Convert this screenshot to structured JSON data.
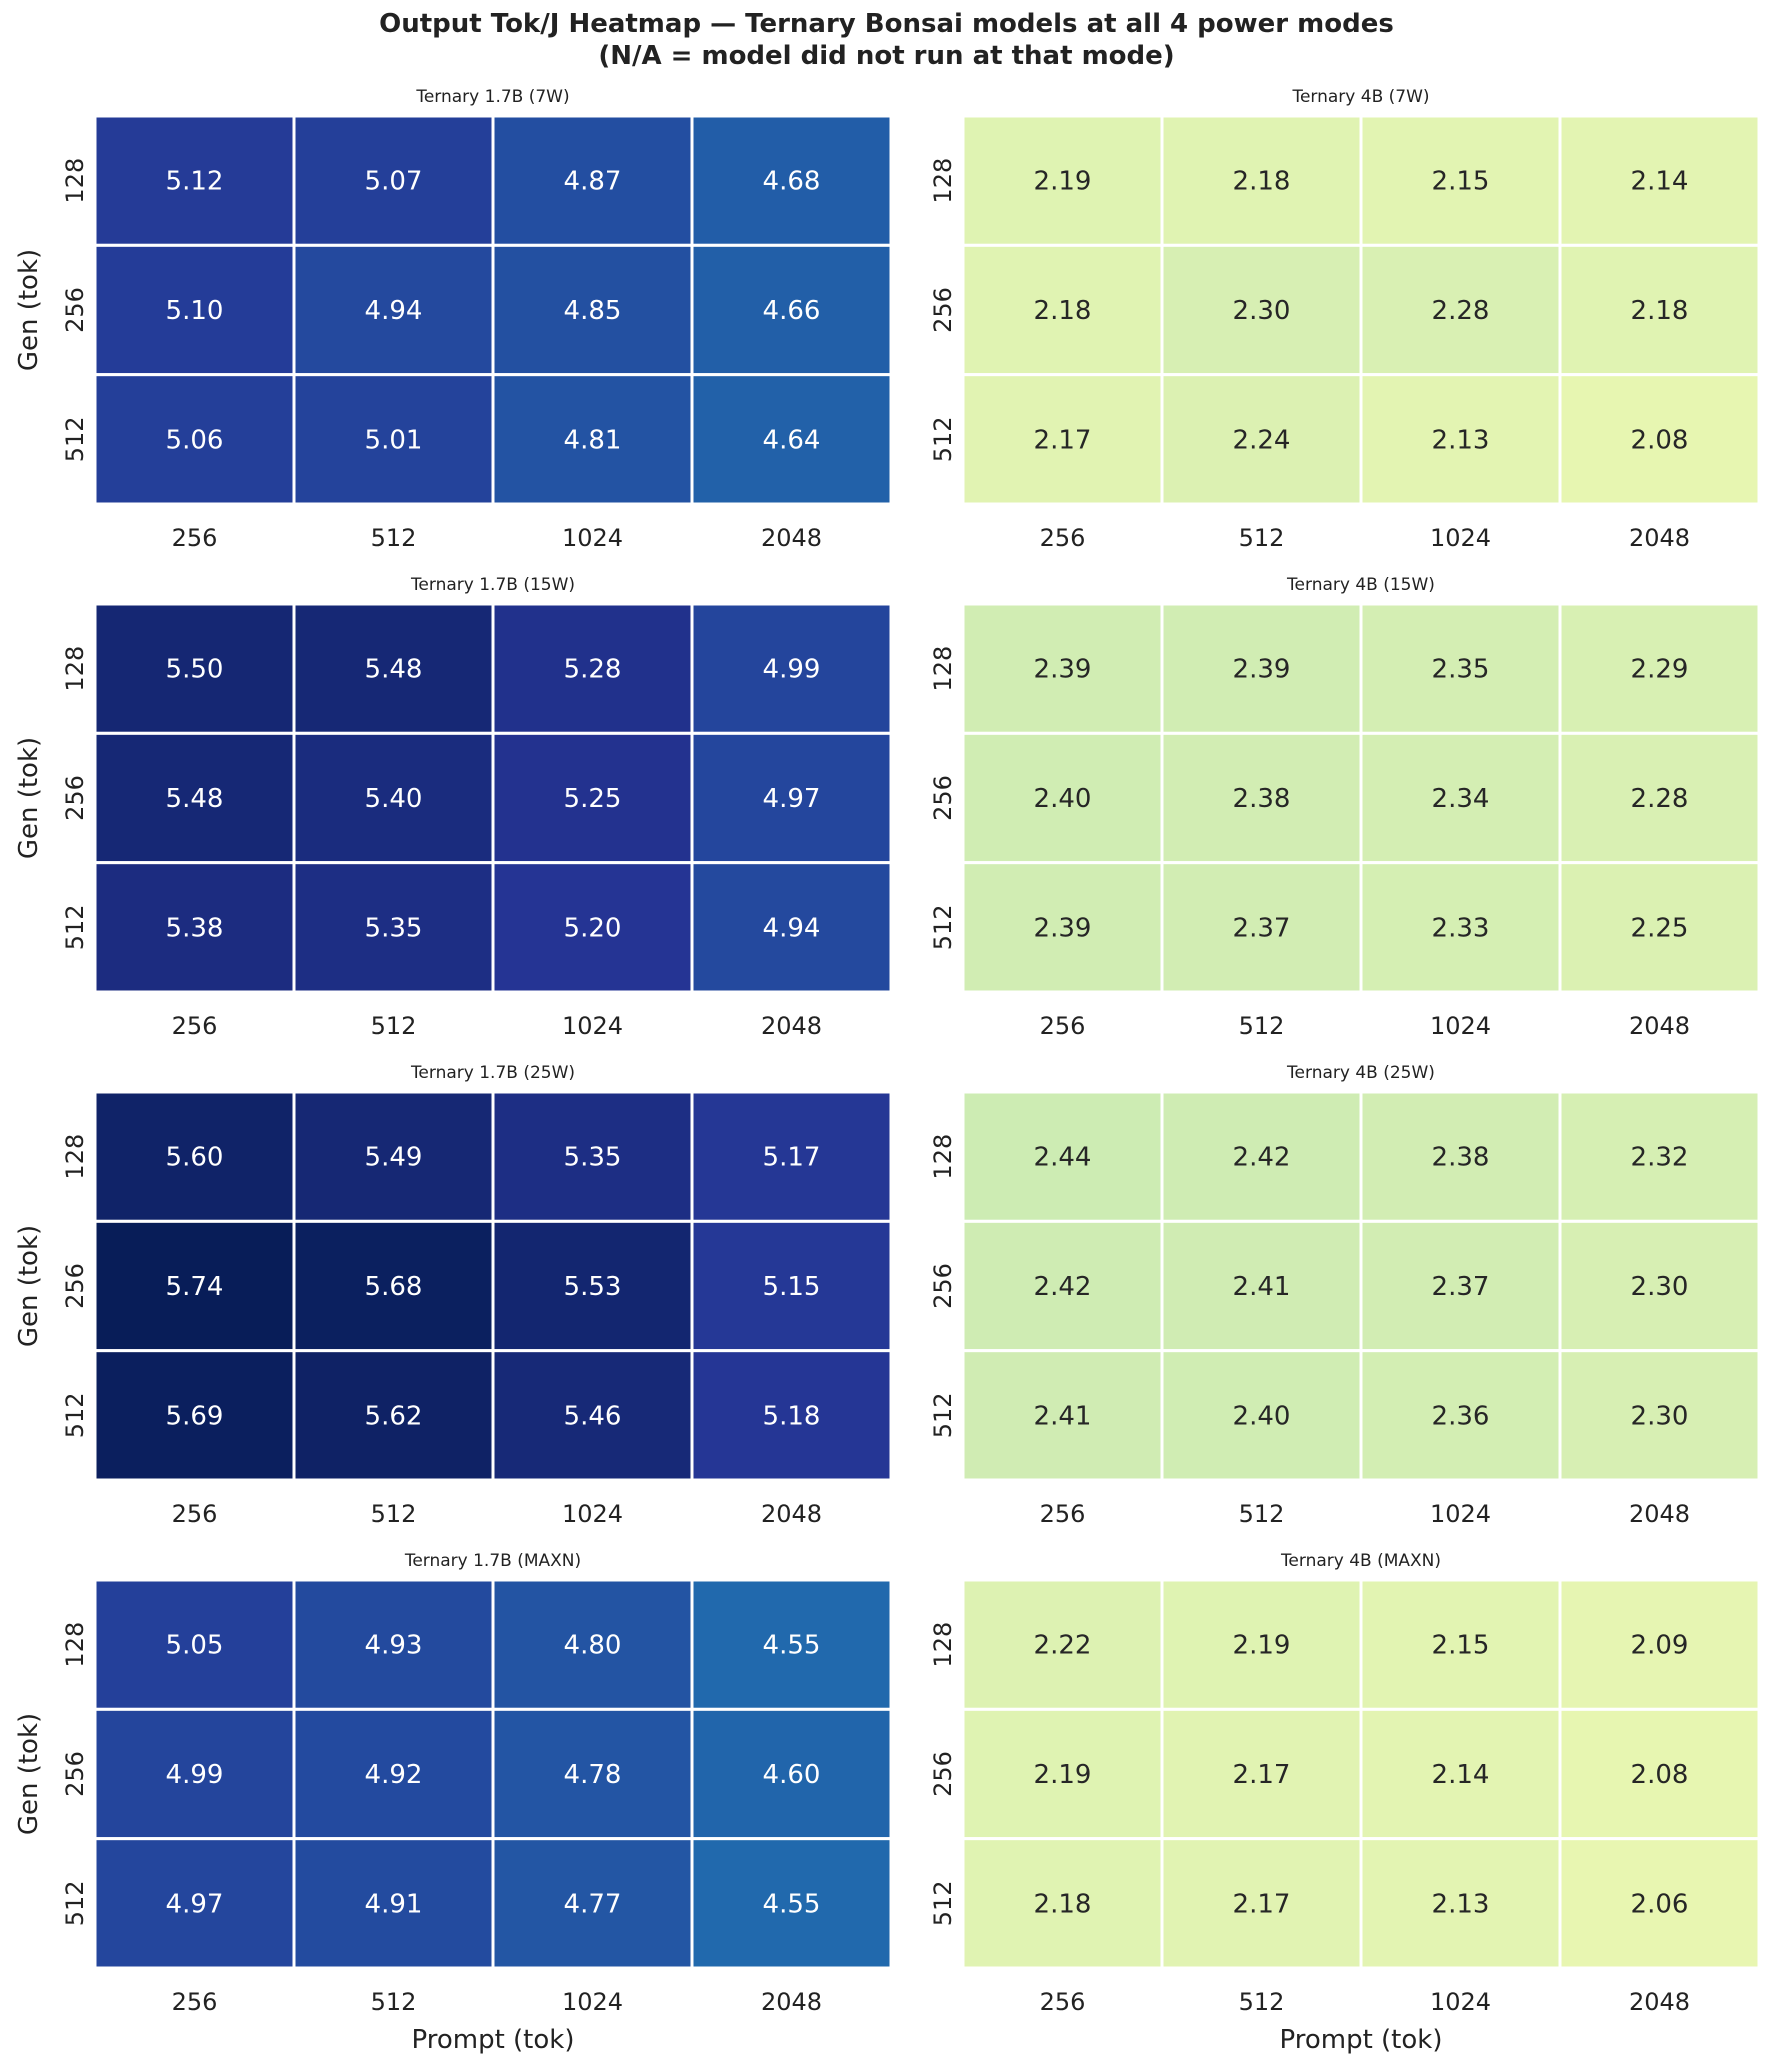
{
  "figure": {
    "title_line1": "Output Tok/J Heatmap — Ternary Bonsai models at all 4 power modes",
    "title_line2": "(N/A = model did not run at that mode)"
  },
  "chart_data": [
    {
      "type": "heatmap",
      "title": "Ternary 1.7B (7W)",
      "colormap": "YlGnBu",
      "x": [
        "256",
        "512",
        "1024",
        "2048"
      ],
      "y": [
        "128",
        "256",
        "512"
      ],
      "xlabel": "",
      "ylabel": "Gen (tok)",
      "values": [
        [
          5.12,
          5.07,
          4.87,
          4.68
        ],
        [
          5.1,
          4.94,
          4.85,
          4.66
        ],
        [
          5.06,
          5.01,
          4.81,
          4.64
        ]
      ]
    },
    {
      "type": "heatmap",
      "title": "Ternary 4B (7W)",
      "colormap": "YlGnBu",
      "x": [
        "256",
        "512",
        "1024",
        "2048"
      ],
      "y": [
        "128",
        "256",
        "512"
      ],
      "xlabel": "",
      "ylabel": "",
      "values": [
        [
          2.19,
          2.18,
          2.15,
          2.14
        ],
        [
          2.18,
          2.3,
          2.28,
          2.18
        ],
        [
          2.17,
          2.24,
          2.13,
          2.08
        ]
      ]
    },
    {
      "type": "heatmap",
      "title": "Ternary 1.7B (15W)",
      "colormap": "YlGnBu",
      "x": [
        "256",
        "512",
        "1024",
        "2048"
      ],
      "y": [
        "128",
        "256",
        "512"
      ],
      "xlabel": "",
      "ylabel": "Gen (tok)",
      "values": [
        [
          5.5,
          5.48,
          5.28,
          4.99
        ],
        [
          5.48,
          5.4,
          5.25,
          4.97
        ],
        [
          5.38,
          5.35,
          5.2,
          4.94
        ]
      ]
    },
    {
      "type": "heatmap",
      "title": "Ternary 4B (15W)",
      "colormap": "YlGnBu",
      "x": [
        "256",
        "512",
        "1024",
        "2048"
      ],
      "y": [
        "128",
        "256",
        "512"
      ],
      "xlabel": "",
      "ylabel": "",
      "values": [
        [
          2.39,
          2.39,
          2.35,
          2.29
        ],
        [
          2.4,
          2.38,
          2.34,
          2.28
        ],
        [
          2.39,
          2.37,
          2.33,
          2.25
        ]
      ]
    },
    {
      "type": "heatmap",
      "title": "Ternary 1.7B (25W)",
      "colormap": "YlGnBu",
      "x": [
        "256",
        "512",
        "1024",
        "2048"
      ],
      "y": [
        "128",
        "256",
        "512"
      ],
      "xlabel": "",
      "ylabel": "Gen (tok)",
      "values": [
        [
          5.6,
          5.49,
          5.35,
          5.17
        ],
        [
          5.74,
          5.68,
          5.53,
          5.15
        ],
        [
          5.69,
          5.62,
          5.46,
          5.18
        ]
      ]
    },
    {
      "type": "heatmap",
      "title": "Ternary 4B (25W)",
      "colormap": "YlGnBu",
      "x": [
        "256",
        "512",
        "1024",
        "2048"
      ],
      "y": [
        "128",
        "256",
        "512"
      ],
      "xlabel": "",
      "ylabel": "",
      "values": [
        [
          2.44,
          2.42,
          2.38,
          2.32
        ],
        [
          2.42,
          2.41,
          2.37,
          2.3
        ],
        [
          2.41,
          2.4,
          2.36,
          2.3
        ]
      ]
    },
    {
      "type": "heatmap",
      "title": "Ternary 1.7B (MAXN)",
      "colormap": "YlGnBu",
      "x": [
        "256",
        "512",
        "1024",
        "2048"
      ],
      "y": [
        "128",
        "256",
        "512"
      ],
      "xlabel": "Prompt (tok)",
      "ylabel": "Gen (tok)",
      "values": [
        [
          5.05,
          4.93,
          4.8,
          4.55
        ],
        [
          4.99,
          4.92,
          4.78,
          4.6
        ],
        [
          4.97,
          4.91,
          4.77,
          4.55
        ]
      ]
    },
    {
      "type": "heatmap",
      "title": "Ternary 4B (MAXN)",
      "colormap": "YlGnBu",
      "x": [
        "256",
        "512",
        "1024",
        "2048"
      ],
      "y": [
        "128",
        "256",
        "512"
      ],
      "xlabel": "Prompt (tok)",
      "ylabel": "",
      "values": [
        [
          2.22,
          2.19,
          2.15,
          2.09
        ],
        [
          2.19,
          2.17,
          2.14,
          2.08
        ],
        [
          2.18,
          2.17,
          2.13,
          2.06
        ]
      ]
    }
  ]
}
